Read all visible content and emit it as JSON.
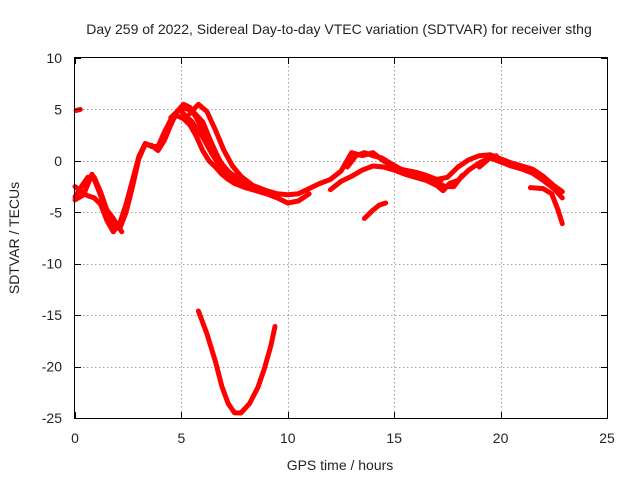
{
  "chart_data": {
    "type": "scatter",
    "title": "Day 259 of 2022, Sidereal Day-to-day VTEC variation (SDTVAR) for receiver sthg",
    "xlabel": "GPS time / hours",
    "ylabel": "SDTVAR / TECUs",
    "xlim": [
      0,
      25
    ],
    "ylim": [
      -25,
      10
    ],
    "xticks": [
      0,
      5,
      10,
      15,
      20,
      25
    ],
    "yticks": [
      10,
      5,
      0,
      -5,
      -10,
      -15,
      -20,
      -25
    ],
    "grid": true,
    "legend": "none",
    "color": "#ff0000",
    "series": [
      {
        "name": "arc-1",
        "points": [
          [
            0.05,
            4.9
          ],
          [
            0.25,
            5.0
          ]
        ]
      },
      {
        "name": "arc-2",
        "points": [
          [
            0.0,
            -3.5
          ],
          [
            0.3,
            -2.5
          ],
          [
            0.6,
            -1.6
          ],
          [
            0.9,
            -1.6
          ],
          [
            1.2,
            -3.0
          ],
          [
            1.5,
            -4.8
          ],
          [
            1.8,
            -6.2
          ],
          [
            2.1,
            -6.6
          ],
          [
            2.4,
            -5.0
          ],
          [
            2.7,
            -2.5
          ],
          [
            3.0,
            0.2
          ],
          [
            3.3,
            1.6
          ],
          [
            3.6,
            1.5
          ],
          [
            3.9,
            1.0
          ],
          [
            4.2,
            2.0
          ],
          [
            4.5,
            3.5
          ],
          [
            4.8,
            4.8
          ],
          [
            5.1,
            5.5
          ],
          [
            5.4,
            5.2
          ],
          [
            5.7,
            4.2
          ],
          [
            6.0,
            3.0
          ],
          [
            6.3,
            2.0
          ],
          [
            6.6,
            0.8
          ],
          [
            6.9,
            -0.3
          ],
          [
            7.2,
            -1.0
          ],
          [
            7.5,
            -1.6
          ],
          [
            8.0,
            -2.1
          ],
          [
            8.5,
            -2.5
          ],
          [
            9.0,
            -2.9
          ],
          [
            9.5,
            -3.2
          ],
          [
            10.0,
            -3.3
          ],
          [
            10.5,
            -3.2
          ],
          [
            11.0,
            -2.7
          ]
        ]
      },
      {
        "name": "arc-3",
        "points": [
          [
            0.0,
            -2.5
          ],
          [
            0.3,
            -3.0
          ],
          [
            0.6,
            -3.4
          ],
          [
            0.9,
            -3.6
          ],
          [
            1.2,
            -4.2
          ],
          [
            1.5,
            -5.8
          ],
          [
            1.8,
            -6.9
          ],
          [
            2.1,
            -6.1
          ],
          [
            2.4,
            -4.2
          ],
          [
            2.7,
            -1.9
          ],
          [
            3.0,
            0.4
          ],
          [
            3.3,
            1.7
          ],
          [
            3.6,
            1.4
          ],
          [
            3.9,
            1.4
          ],
          [
            4.2,
            2.8
          ],
          [
            4.5,
            4.0
          ],
          [
            4.8,
            4.4
          ],
          [
            5.1,
            4.1
          ],
          [
            5.4,
            3.5
          ],
          [
            5.7,
            2.4
          ],
          [
            6.0,
            1.0
          ],
          [
            6.3,
            0.0
          ],
          [
            6.6,
            -0.6
          ],
          [
            6.9,
            -1.3
          ],
          [
            7.2,
            -1.8
          ],
          [
            7.5,
            -2.2
          ],
          [
            8.0,
            -2.6
          ],
          [
            8.5,
            -2.9
          ],
          [
            9.0,
            -3.2
          ],
          [
            9.5,
            -3.6
          ],
          [
            10.0,
            -4.1
          ],
          [
            10.5,
            -3.9
          ],
          [
            11.0,
            -3.2
          ]
        ]
      },
      {
        "name": "arc-4",
        "points": [
          [
            0.0,
            -3.8
          ],
          [
            0.4,
            -3.3
          ],
          [
            0.8,
            -1.3
          ],
          [
            1.1,
            -2.8
          ],
          [
            1.4,
            -4.5
          ],
          [
            1.8,
            -5.6
          ],
          [
            2.2,
            -6.9
          ]
        ]
      },
      {
        "name": "arc-5",
        "points": [
          [
            5.4,
            4.6
          ],
          [
            5.8,
            5.5
          ],
          [
            6.2,
            4.8
          ],
          [
            6.6,
            3.0
          ],
          [
            7.0,
            1.0
          ],
          [
            7.4,
            -0.5
          ],
          [
            7.8,
            -1.5
          ],
          [
            8.3,
            -2.3
          ]
        ]
      },
      {
        "name": "arc-6",
        "points": [
          [
            5.0,
            4.8
          ],
          [
            5.5,
            3.8
          ],
          [
            6.0,
            2.3
          ],
          [
            6.4,
            0.8
          ],
          [
            6.8,
            -0.5
          ],
          [
            7.2,
            -1.3
          ],
          [
            7.6,
            -1.9
          ],
          [
            8.1,
            -2.3
          ]
        ]
      },
      {
        "name": "arc-7",
        "points": [
          [
            4.5,
            4.2
          ],
          [
            5.0,
            5.2
          ],
          [
            5.5,
            4.9
          ],
          [
            6.0,
            3.8
          ],
          [
            6.4,
            1.8
          ],
          [
            6.8,
            0.0
          ],
          [
            7.2,
            -1.1
          ],
          [
            7.8,
            -1.8
          ]
        ]
      },
      {
        "name": "arc-8",
        "points": [
          [
            11.0,
            -2.7
          ],
          [
            11.5,
            -2.2
          ],
          [
            12.0,
            -1.8
          ],
          [
            12.5,
            -1.0
          ],
          [
            13.0,
            0.8
          ],
          [
            13.5,
            0.5
          ],
          [
            14.0,
            0.8
          ],
          [
            14.5,
            0.0
          ],
          [
            15.0,
            -0.6
          ],
          [
            15.5,
            -0.9
          ],
          [
            16.0,
            -1.1
          ],
          [
            16.5,
            -1.4
          ],
          [
            17.0,
            -1.8
          ],
          [
            17.5,
            -1.6
          ],
          [
            18.0,
            -0.6
          ],
          [
            18.5,
            0.1
          ],
          [
            19.0,
            0.5
          ],
          [
            19.5,
            0.6
          ],
          [
            20.0,
            0.2
          ],
          [
            20.5,
            -0.2
          ],
          [
            21.0,
            -0.5
          ],
          [
            21.5,
            -0.8
          ],
          [
            22.0,
            -1.5
          ],
          [
            22.5,
            -2.4
          ],
          [
            22.9,
            -3.0
          ]
        ]
      },
      {
        "name": "arc-9",
        "points": [
          [
            12.0,
            -2.8
          ],
          [
            12.5,
            -2.0
          ],
          [
            13.0,
            -1.5
          ],
          [
            13.5,
            -0.9
          ],
          [
            14.0,
            -0.5
          ],
          [
            14.5,
            -0.6
          ],
          [
            15.0,
            -0.9
          ],
          [
            15.5,
            -1.3
          ],
          [
            16.0,
            -1.6
          ],
          [
            16.5,
            -1.9
          ],
          [
            17.0,
            -2.4
          ],
          [
            17.3,
            -2.9
          ],
          [
            17.6,
            -2.2
          ],
          [
            18.0,
            -1.9
          ],
          [
            18.5,
            -0.9
          ],
          [
            19.0,
            -0.2
          ],
          [
            19.5,
            0.3
          ],
          [
            20.0,
            -0.1
          ],
          [
            20.5,
            -0.5
          ],
          [
            21.0,
            -0.8
          ],
          [
            21.5,
            -1.2
          ],
          [
            22.0,
            -1.9
          ],
          [
            22.5,
            -2.7
          ],
          [
            22.9,
            -3.6
          ]
        ]
      },
      {
        "name": "arc-10",
        "points": [
          [
            12.8,
            -0.6
          ],
          [
            13.2,
            0.5
          ],
          [
            13.6,
            0.8
          ],
          [
            14.0,
            0.5
          ],
          [
            14.4,
            0.3
          ],
          [
            14.8,
            -0.2
          ],
          [
            15.3,
            -0.8
          ],
          [
            15.8,
            -1.3
          ],
          [
            16.3,
            -1.5
          ],
          [
            16.8,
            -1.8
          ],
          [
            17.2,
            -1.9
          ]
        ]
      },
      {
        "name": "arc-11",
        "points": [
          [
            13.6,
            -5.6
          ],
          [
            14.0,
            -4.8
          ],
          [
            14.3,
            -4.3
          ],
          [
            14.6,
            -4.1
          ]
        ]
      },
      {
        "name": "arc-12",
        "points": [
          [
            16.8,
            -1.9
          ],
          [
            17.4,
            -2.5
          ],
          [
            17.8,
            -2.5
          ],
          [
            18.2,
            -1.4
          ]
        ]
      },
      {
        "name": "arc-13",
        "points": [
          [
            19.0,
            -0.6
          ],
          [
            19.5,
            0.3
          ],
          [
            19.8,
            0.5
          ]
        ]
      },
      {
        "name": "arc-14",
        "points": [
          [
            21.4,
            -2.6
          ],
          [
            22.0,
            -2.7
          ],
          [
            22.4,
            -3.2
          ],
          [
            22.7,
            -4.8
          ],
          [
            22.9,
            -6.1
          ]
        ]
      },
      {
        "name": "arc-15",
        "points": [
          [
            5.8,
            -14.6
          ],
          [
            6.2,
            -16.8
          ],
          [
            6.6,
            -19.5
          ],
          [
            6.9,
            -21.9
          ],
          [
            7.2,
            -23.6
          ],
          [
            7.5,
            -24.5
          ],
          [
            7.8,
            -24.5
          ],
          [
            8.2,
            -23.6
          ],
          [
            8.6,
            -22.0
          ],
          [
            8.9,
            -20.2
          ],
          [
            9.2,
            -18.0
          ],
          [
            9.4,
            -16.1
          ]
        ]
      }
    ]
  }
}
